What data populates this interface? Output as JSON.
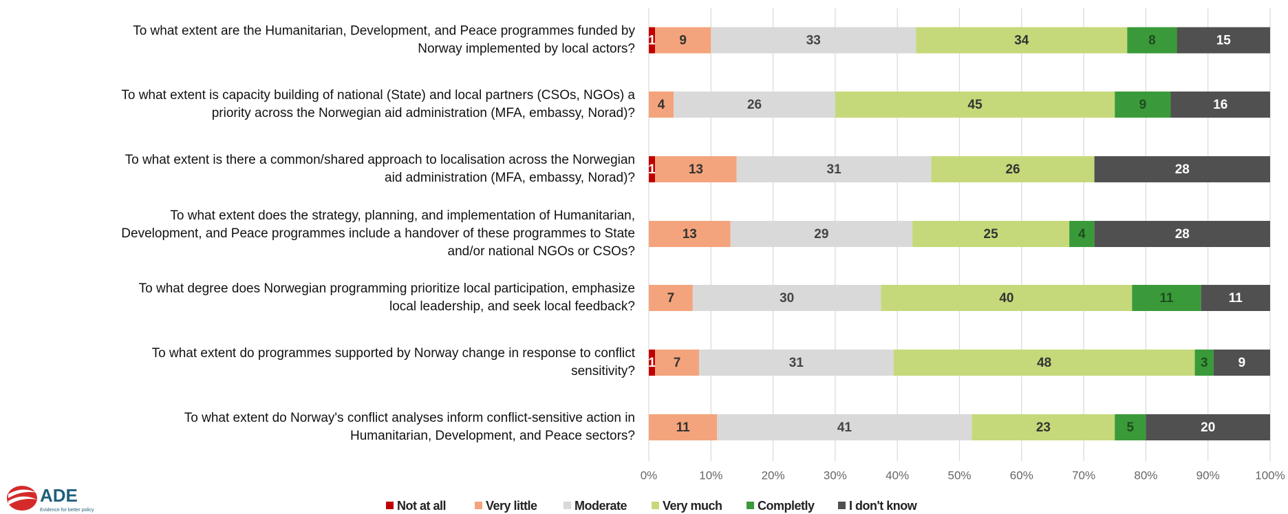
{
  "chart_data": {
    "type": "bar",
    "orientation": "horizontal",
    "stacking": "percent",
    "categories": [
      [
        "To what extent are the Humanitarian, Development, and Peace programmes funded by",
        "Norway implemented by local actors?"
      ],
      [
        "To what extent is capacity building of national (State) and local partners (CSOs, NGOs) a",
        "priority across the Norwegian aid administration (MFA, embassy, Norad)?"
      ],
      [
        "To what extent is there a common/shared approach to localisation across the Norwegian",
        "aid administration (MFA, embassy, Norad)?"
      ],
      [
        "To what extent does the strategy, planning, and implementation of Humanitarian,",
        "Development, and Peace programmes include a handover of these programmes to State",
        "and/or national NGOs or CSOs?"
      ],
      [
        "To what degree does Norwegian programming prioritize local participation, emphasize",
        "local leadership, and seek local feedback?"
      ],
      [
        "To what extent do programmes supported by Norway change in response to conflict",
        "sensitivity?"
      ],
      [
        "To what extent do Norway's conflict analyses inform conflict-sensitive action in",
        "Humanitarian, Development, and Peace sectors?"
      ]
    ],
    "series": [
      {
        "name": "Not at all",
        "color": "#c00000",
        "label_color": "#ffffff",
        "values": [
          1,
          0,
          1,
          0,
          0,
          1,
          0
        ]
      },
      {
        "name": "Very little",
        "color": "#f4a47c",
        "label_color": "#333333",
        "values": [
          9,
          4,
          13,
          13,
          7,
          7,
          11
        ]
      },
      {
        "name": "Moderate",
        "color": "#d9d9d9",
        "label_color": "#444444",
        "values": [
          33,
          26,
          31,
          29,
          30,
          31,
          41
        ]
      },
      {
        "name": "Very much",
        "color": "#c5d97a",
        "label_color": "#333333",
        "values": [
          34,
          45,
          26,
          25,
          40,
          48,
          23
        ]
      },
      {
        "name": "Completly",
        "color": "#3a9a3a",
        "label_color": "#1e4d1e",
        "values": [
          8,
          9,
          0,
          4,
          11,
          3,
          5
        ]
      },
      {
        "name": "I don't know",
        "color": "#505050",
        "label_color": "#ffffff",
        "values": [
          15,
          16,
          28,
          28,
          11,
          9,
          20
        ]
      }
    ],
    "xlim": [
      0,
      100
    ],
    "xticks": [
      {
        "value": 0,
        "label": "0%"
      },
      {
        "value": 10,
        "label": "10%"
      },
      {
        "value": 20,
        "label": "20%"
      },
      {
        "value": 30,
        "label": "30%"
      },
      {
        "value": 40,
        "label": "40%"
      },
      {
        "value": 50,
        "label": "50%"
      },
      {
        "value": 60,
        "label": "60%"
      },
      {
        "value": 70,
        "label": "70%"
      },
      {
        "value": 80,
        "label": "80%"
      },
      {
        "value": 90,
        "label": "90%"
      },
      {
        "value": 100,
        "label": "100%"
      }
    ],
    "grid": true,
    "legend": "bottom"
  },
  "logo": {
    "name": "ADE",
    "tagline": "Evidence for better policy"
  }
}
